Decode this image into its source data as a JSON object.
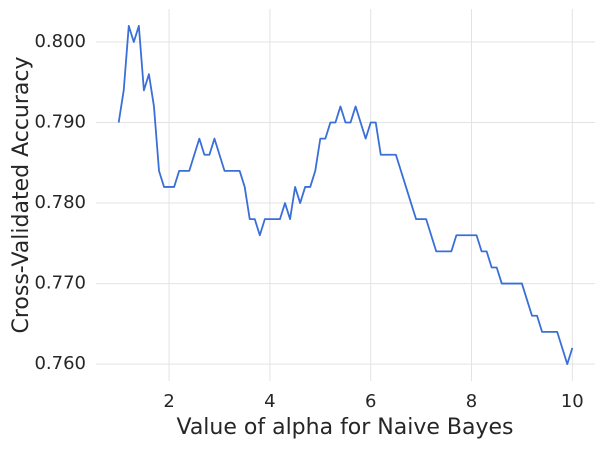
{
  "chart_data": {
    "type": "line",
    "x_label": "Value of alpha for Naive Bayes",
    "y_label": "Cross-Validated Accuracy",
    "x": [
      1.0,
      1.1,
      1.2,
      1.3,
      1.4,
      1.5,
      1.6,
      1.7,
      1.8,
      1.9,
      2.0,
      2.1,
      2.2,
      2.3,
      2.4,
      2.5,
      2.6,
      2.7,
      2.8,
      2.9,
      3.0,
      3.1,
      3.2,
      3.3,
      3.4,
      3.5,
      3.6,
      3.7,
      3.8,
      3.9,
      4.0,
      4.1,
      4.2,
      4.3,
      4.4,
      4.5,
      4.6,
      4.7,
      4.8,
      4.9,
      5.0,
      5.1,
      5.2,
      5.3,
      5.4,
      5.5,
      5.6,
      5.7,
      5.8,
      5.9,
      6.0,
      6.1,
      6.2,
      6.3,
      6.4,
      6.5,
      6.6,
      6.7,
      6.8,
      6.9,
      7.0,
      7.1,
      7.2,
      7.3,
      7.4,
      7.5,
      7.6,
      7.7,
      7.8,
      7.9,
      8.0,
      8.1,
      8.2,
      8.3,
      8.4,
      8.5,
      8.6,
      8.7,
      8.8,
      8.9,
      9.0,
      9.1,
      9.2,
      9.3,
      9.4,
      9.5,
      9.6,
      9.7,
      9.8,
      9.9,
      10.0
    ],
    "series": [
      {
        "color": "#3a6fd8",
        "values": [
          0.79,
          0.794,
          0.802,
          0.8,
          0.802,
          0.794,
          0.796,
          0.792,
          0.784,
          0.782,
          0.782,
          0.782,
          0.784,
          0.784,
          0.784,
          0.786,
          0.788,
          0.786,
          0.786,
          0.788,
          0.786,
          0.784,
          0.784,
          0.784,
          0.784,
          0.782,
          0.778,
          0.778,
          0.776,
          0.778,
          0.778,
          0.778,
          0.778,
          0.78,
          0.778,
          0.782,
          0.78,
          0.782,
          0.782,
          0.784,
          0.788,
          0.788,
          0.79,
          0.79,
          0.792,
          0.79,
          0.79,
          0.792,
          0.79,
          0.788,
          0.79,
          0.79,
          0.786,
          0.786,
          0.786,
          0.786,
          0.784,
          0.782,
          0.78,
          0.778,
          0.778,
          0.778,
          0.776,
          0.774,
          0.774,
          0.774,
          0.774,
          0.776,
          0.776,
          0.776,
          0.776,
          0.776,
          0.774,
          0.774,
          0.772,
          0.772,
          0.77,
          0.77,
          0.77,
          0.77,
          0.77,
          0.768,
          0.766,
          0.766,
          0.764,
          0.764,
          0.764,
          0.764,
          0.762,
          0.76,
          0.762
        ]
      }
    ],
    "xlim": [
      0.55,
      10.45
    ],
    "ylim": [
      0.7579,
      0.8041
    ],
    "xticks": [
      2,
      4,
      6,
      8,
      10
    ],
    "yticks": [
      {
        "value": 0.76,
        "label": "0.760"
      },
      {
        "value": 0.77,
        "label": "0.770"
      },
      {
        "value": 0.78,
        "label": "0.780"
      },
      {
        "value": 0.79,
        "label": "0.790"
      },
      {
        "value": 0.8,
        "label": "0.800"
      }
    ],
    "grid": true
  }
}
